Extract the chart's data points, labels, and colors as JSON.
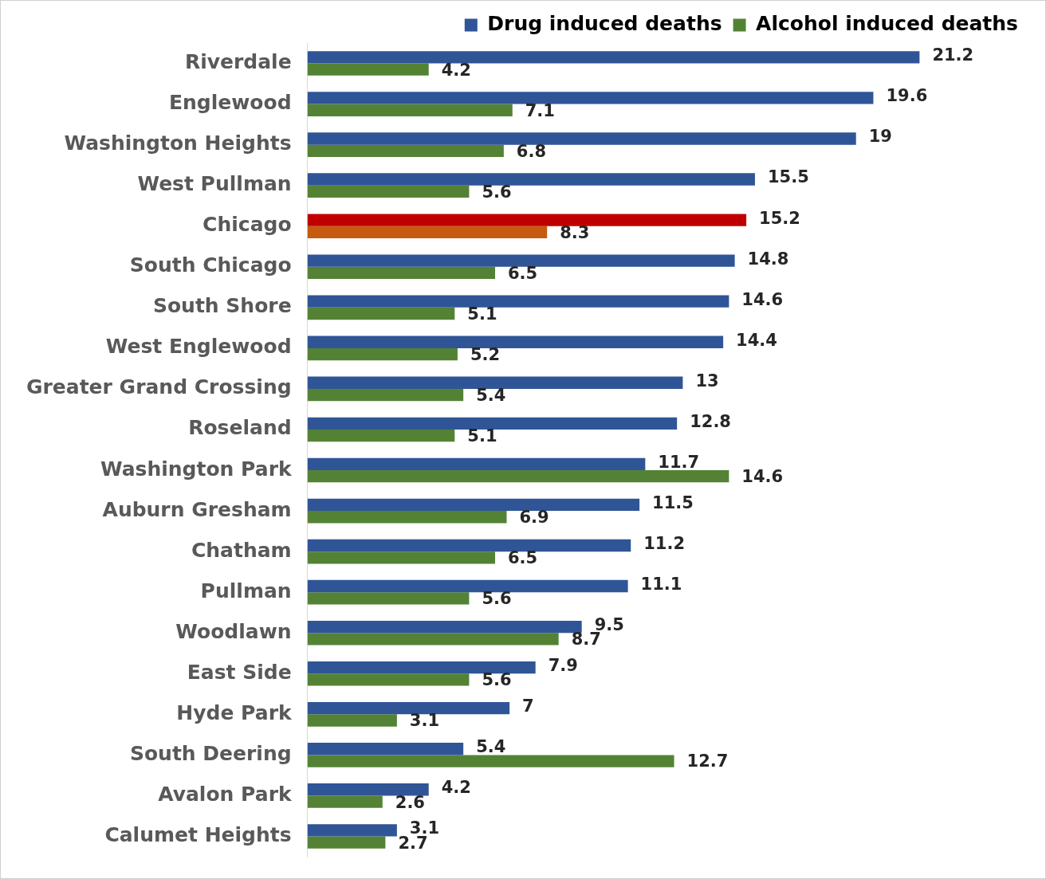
{
  "chart_data": {
    "type": "bar",
    "orientation": "horizontal",
    "data_labels": true,
    "legend": "top right",
    "grid": false,
    "categories": [
      "Riverdale",
      "Englewood",
      "Washington Heights",
      "West Pullman",
      "Chicago",
      "South Chicago",
      "South Shore",
      "West Englewood",
      "Greater Grand Crossing",
      "Roseland",
      "Washington Park",
      "Auburn Gresham",
      "Chatham",
      "Pullman",
      "Woodlawn",
      "East Side",
      "Hyde Park",
      "South Deering",
      "Avalon Park",
      "Calumet Heights"
    ],
    "series": [
      {
        "name": "Drug induced deaths",
        "color": "#2f5597",
        "colors": [
          "#2f5597",
          "#2f5597",
          "#2f5597",
          "#2f5597",
          "#c00000",
          "#2f5597",
          "#2f5597",
          "#2f5597",
          "#2f5597",
          "#2f5597",
          "#2f5597",
          "#2f5597",
          "#2f5597",
          "#2f5597",
          "#2f5597",
          "#2f5597",
          "#2f5597",
          "#2f5597",
          "#2f5597",
          "#2f5597"
        ],
        "values": [
          21.2,
          19.6,
          19,
          15.5,
          15.2,
          14.8,
          14.6,
          14.4,
          13,
          12.8,
          11.7,
          11.5,
          11.2,
          11.1,
          9.5,
          7.9,
          7,
          5.4,
          4.2,
          3.1
        ]
      },
      {
        "name": "Alcohol induced deaths",
        "color": "#548235",
        "colors": [
          "#548235",
          "#548235",
          "#548235",
          "#548235",
          "#c55a11",
          "#548235",
          "#548235",
          "#548235",
          "#548235",
          "#548235",
          "#548235",
          "#548235",
          "#548235",
          "#548235",
          "#548235",
          "#548235",
          "#548235",
          "#548235",
          "#548235",
          "#548235"
        ],
        "values": [
          4.2,
          7.1,
          6.8,
          5.6,
          8.3,
          6.5,
          5.1,
          5.2,
          5.4,
          5.1,
          14.6,
          6.9,
          6.5,
          5.6,
          8.7,
          5.6,
          3.1,
          12.7,
          2.6,
          2.7
        ]
      }
    ]
  }
}
